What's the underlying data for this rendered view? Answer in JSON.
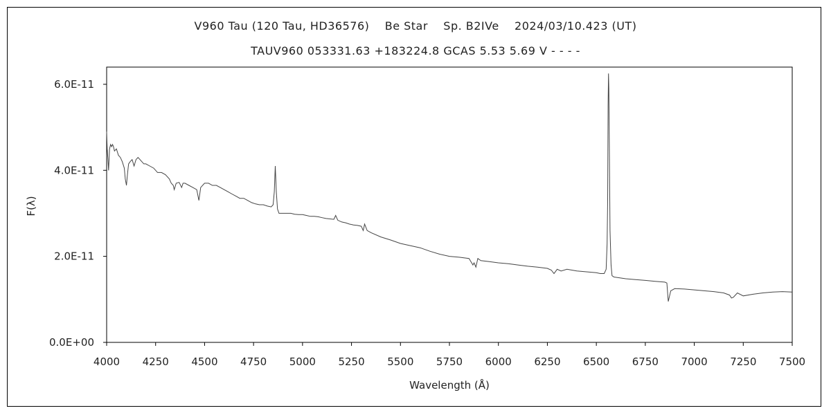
{
  "chart_data": {
    "type": "line",
    "title": "V960 Tau (120 Tau, HD36576)    Be Star    Sp. B2IVe    2024/03/10.423 (UT)",
    "subtitle": "TAUV960 053331.63 +183224.8 GCAS 5.53 5.69 V - - - -",
    "xlabel": "Wavelength (Å)",
    "ylabel": "F(λ)",
    "xlim": [
      4000,
      7500
    ],
    "ylim": [
      0,
      6.4e-11
    ],
    "x_ticks": [
      4000,
      4250,
      4500,
      4750,
      5000,
      5250,
      5500,
      5750,
      6000,
      6250,
      6500,
      6750,
      7000,
      7250,
      7500
    ],
    "y_ticks": [
      {
        "value": 0,
        "label": "0.0E+00"
      },
      {
        "value": 2e-11,
        "label": "2.0E-11"
      },
      {
        "value": 4e-11,
        "label": "4.0E-11"
      },
      {
        "value": 6e-11,
        "label": "6.0E-11"
      }
    ],
    "grid": false,
    "line_color": "#444444",
    "series": [
      {
        "x": [
          4000,
          4003,
          4006,
          4010,
          4015,
          4020,
          4025,
          4030,
          4035,
          4040,
          4050,
          4060,
          4070,
          4080,
          4090,
          4095,
          4101,
          4106,
          4112,
          4120,
          4130,
          4140,
          4150,
          4160,
          4170,
          4180,
          4190,
          4200,
          4220,
          4240,
          4260,
          4280,
          4300,
          4320,
          4330,
          4340,
          4345,
          4355,
          4370,
          4383,
          4390,
          4400,
          4420,
          4440,
          4460,
          4471,
          4480,
          4500,
          4520,
          4540,
          4560,
          4580,
          4600,
          4620,
          4640,
          4660,
          4680,
          4700,
          4720,
          4740,
          4760,
          4780,
          4800,
          4820,
          4840,
          4850,
          4856,
          4861,
          4866,
          4872,
          4880,
          4900,
          4920,
          4940,
          4960,
          4980,
          5000,
          5020,
          5040,
          5060,
          5080,
          5100,
          5120,
          5140,
          5160,
          5169,
          5180,
          5200,
          5220,
          5240,
          5260,
          5280,
          5300,
          5310,
          5317,
          5330,
          5350,
          5400,
          5450,
          5500,
          5550,
          5600,
          5650,
          5700,
          5750,
          5800,
          5850,
          5870,
          5876,
          5885,
          5895,
          5910,
          5950,
          6000,
          6050,
          6100,
          6150,
          6200,
          6250,
          6270,
          6284,
          6300,
          6320,
          6350,
          6400,
          6450,
          6500,
          6520,
          6540,
          6550,
          6555,
          6558,
          6560,
          6562,
          6564,
          6567,
          6570,
          6575,
          6580,
          6590,
          6620,
          6650,
          6700,
          6750,
          6800,
          6850,
          6860,
          6867,
          6880,
          6900,
          6950,
          7000,
          7050,
          7100,
          7150,
          7180,
          7190,
          7200,
          7220,
          7250,
          7300,
          7350,
          7400,
          7450,
          7500
        ],
        "y": [
          4.9e-11,
          4.5e-11,
          4.3e-11,
          4e-11,
          4.5e-11,
          4.6e-11,
          4.55e-11,
          4.6e-11,
          4.55e-11,
          4.45e-11,
          4.5e-11,
          4.35e-11,
          4.3e-11,
          4.2e-11,
          4.05e-11,
          3.8e-11,
          3.65e-11,
          3.9e-11,
          4.15e-11,
          4.2e-11,
          4.25e-11,
          4.1e-11,
          4.25e-11,
          4.3e-11,
          4.25e-11,
          4.2e-11,
          4.15e-11,
          4.15e-11,
          4.1e-11,
          4.05e-11,
          3.95e-11,
          3.95e-11,
          3.9e-11,
          3.8e-11,
          3.7e-11,
          3.65e-11,
          3.55e-11,
          3.7e-11,
          3.72e-11,
          3.6e-11,
          3.7e-11,
          3.7e-11,
          3.65e-11,
          3.6e-11,
          3.55e-11,
          3.3e-11,
          3.6e-11,
          3.7e-11,
          3.7e-11,
          3.65e-11,
          3.65e-11,
          3.6e-11,
          3.55e-11,
          3.5e-11,
          3.45e-11,
          3.4e-11,
          3.35e-11,
          3.35e-11,
          3.3e-11,
          3.25e-11,
          3.22e-11,
          3.2e-11,
          3.2e-11,
          3.17e-11,
          3.15e-11,
          3.2e-11,
          3.5e-11,
          4.1e-11,
          3.5e-11,
          3.1e-11,
          3e-11,
          3e-11,
          3e-11,
          3e-11,
          2.98e-11,
          2.97e-11,
          2.97e-11,
          2.95e-11,
          2.93e-11,
          2.93e-11,
          2.92e-11,
          2.9e-11,
          2.88e-11,
          2.87e-11,
          2.86e-11,
          2.95e-11,
          2.84e-11,
          2.8e-11,
          2.78e-11,
          2.75e-11,
          2.73e-11,
          2.72e-11,
          2.7e-11,
          2.6e-11,
          2.75e-11,
          2.6e-11,
          2.55e-11,
          2.45e-11,
          2.38e-11,
          2.3e-11,
          2.25e-11,
          2.2e-11,
          2.12e-11,
          2.05e-11,
          2e-11,
          1.98e-11,
          1.95e-11,
          1.8e-11,
          1.85e-11,
          1.75e-11,
          1.95e-11,
          1.9e-11,
          1.88e-11,
          1.85e-11,
          1.83e-11,
          1.8e-11,
          1.77e-11,
          1.75e-11,
          1.72e-11,
          1.68e-11,
          1.6e-11,
          1.7e-11,
          1.66e-11,
          1.7e-11,
          1.66e-11,
          1.64e-11,
          1.62e-11,
          1.6e-11,
          1.6e-11,
          1.7e-11,
          2.3e-11,
          3.3e-11,
          5.5e-11,
          6.25e-11,
          5.9e-11,
          4.2e-11,
          2.6e-11,
          1.8e-11,
          1.55e-11,
          1.52e-11,
          1.5e-11,
          1.48e-11,
          1.46e-11,
          1.44e-11,
          1.42e-11,
          1.4e-11,
          1.38e-11,
          9.5e-12,
          1.2e-11,
          1.25e-11,
          1.24e-11,
          1.22e-11,
          1.2e-11,
          1.18e-11,
          1.15e-11,
          1.1e-11,
          1.03e-11,
          1.05e-11,
          1.15e-11,
          1.08e-11,
          1.12e-11,
          1.15e-11,
          1.17e-11,
          1.18e-11,
          1.17e-11
        ]
      }
    ]
  }
}
